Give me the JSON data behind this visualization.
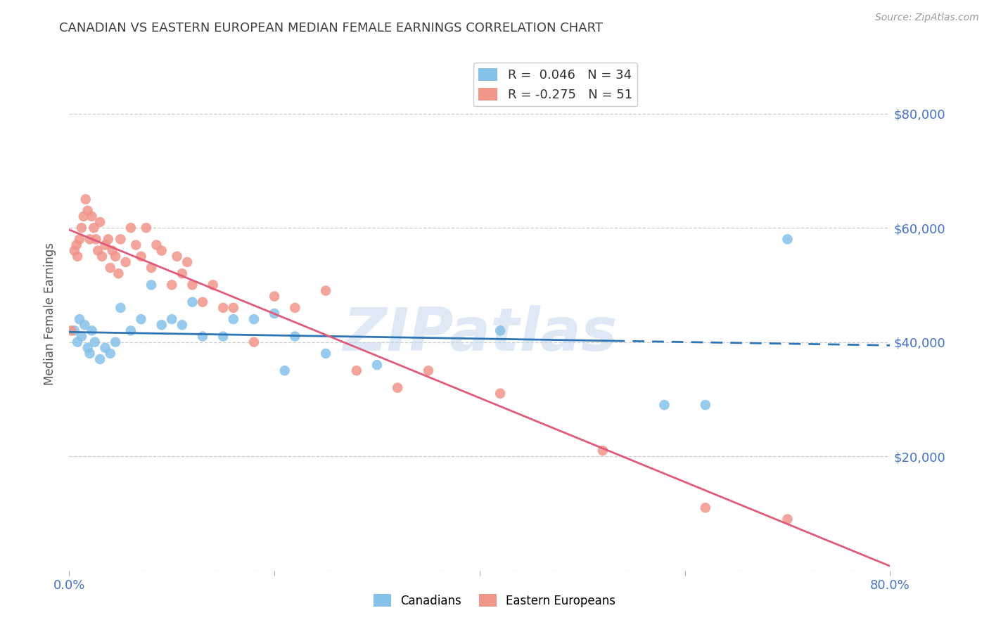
{
  "title": "CANADIAN VS EASTERN EUROPEAN MEDIAN FEMALE EARNINGS CORRELATION CHART",
  "source": "Source: ZipAtlas.com",
  "ylabel": "Median Female Earnings",
  "watermark": "ZIPatlas",
  "canadians_R": 0.046,
  "canadians_N": 34,
  "easterneuropeans_R": -0.275,
  "easterneuropeans_N": 51,
  "blue_color": "#85C1E9",
  "pink_color": "#F1948A",
  "blue_line_color": "#2E75B6",
  "pink_line_color": "#E05A7A",
  "axis_label_color": "#4472C4",
  "title_color": "#404040",
  "background_color": "#FFFFFF",
  "grid_color": "#C8C8C8",
  "ylim": [
    0,
    90000
  ],
  "xlim": [
    0.0,
    0.8
  ],
  "yticks": [
    0,
    20000,
    40000,
    60000,
    80000
  ],
  "ytick_labels": [
    "",
    "$20,000",
    "$40,000",
    "$60,000",
    "$80,000"
  ],
  "xticks": [
    0.0,
    0.2,
    0.4,
    0.6,
    0.8
  ],
  "xtick_labels": [
    "0.0%",
    "",
    "",
    "",
    "80.0%"
  ],
  "canadians_x": [
    0.005,
    0.008,
    0.01,
    0.012,
    0.015,
    0.018,
    0.02,
    0.022,
    0.025,
    0.03,
    0.035,
    0.04,
    0.045,
    0.05,
    0.06,
    0.07,
    0.08,
    0.09,
    0.1,
    0.11,
    0.12,
    0.13,
    0.15,
    0.16,
    0.18,
    0.2,
    0.21,
    0.22,
    0.25,
    0.3,
    0.42,
    0.58,
    0.62,
    0.7
  ],
  "canadians_y": [
    42000,
    40000,
    44000,
    41000,
    43000,
    39000,
    38000,
    42000,
    40000,
    37000,
    39000,
    38000,
    40000,
    46000,
    42000,
    44000,
    50000,
    43000,
    44000,
    43000,
    47000,
    41000,
    41000,
    44000,
    44000,
    45000,
    35000,
    41000,
    38000,
    36000,
    42000,
    29000,
    29000,
    58000
  ],
  "easterneuropeans_x": [
    0.002,
    0.005,
    0.007,
    0.008,
    0.01,
    0.012,
    0.014,
    0.016,
    0.018,
    0.02,
    0.022,
    0.024,
    0.026,
    0.028,
    0.03,
    0.032,
    0.035,
    0.038,
    0.04,
    0.042,
    0.045,
    0.048,
    0.05,
    0.055,
    0.06,
    0.065,
    0.07,
    0.075,
    0.08,
    0.085,
    0.09,
    0.1,
    0.105,
    0.11,
    0.115,
    0.12,
    0.13,
    0.14,
    0.15,
    0.16,
    0.18,
    0.2,
    0.22,
    0.25,
    0.28,
    0.32,
    0.35,
    0.42,
    0.52,
    0.62,
    0.7
  ],
  "easterneuropeans_y": [
    42000,
    56000,
    57000,
    55000,
    58000,
    60000,
    62000,
    65000,
    63000,
    58000,
    62000,
    60000,
    58000,
    56000,
    61000,
    55000,
    57000,
    58000,
    53000,
    56000,
    55000,
    52000,
    58000,
    54000,
    60000,
    57000,
    55000,
    60000,
    53000,
    57000,
    56000,
    50000,
    55000,
    52000,
    54000,
    50000,
    47000,
    50000,
    46000,
    46000,
    40000,
    48000,
    46000,
    49000,
    35000,
    32000,
    35000,
    31000,
    21000,
    11000,
    9000
  ],
  "canadian_line_x": [
    0.0,
    0.53,
    0.8
  ],
  "canadian_line_style": [
    "solid",
    "solid",
    "dashed"
  ],
  "ee_line_x_start": 0.0,
  "ee_line_x_end": 0.8,
  "canadian_line_solid_end": 0.53
}
